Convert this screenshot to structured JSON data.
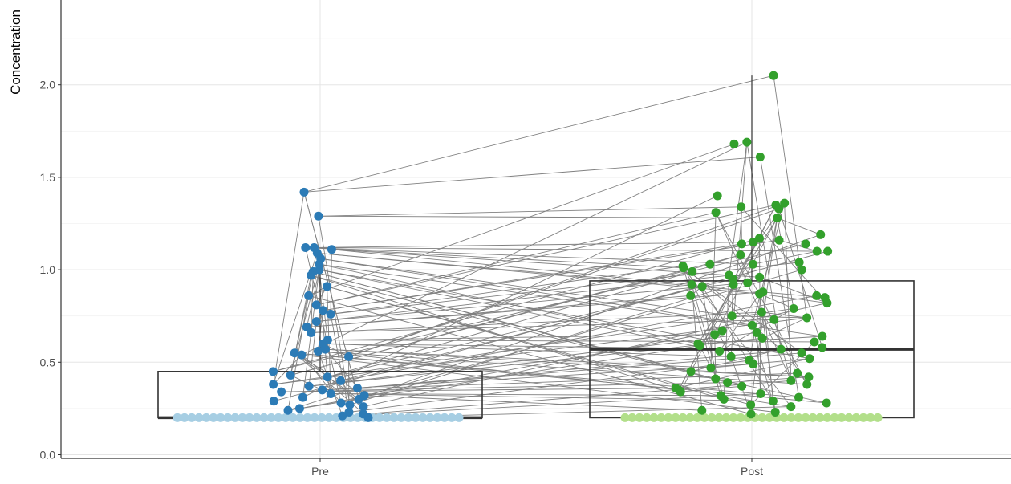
{
  "chart_data": {
    "type": "boxplot",
    "title": "",
    "ylabel": "Concentration",
    "xlabel": "",
    "categories": [
      "Pre",
      "Post"
    ],
    "ylim": [
      0,
      2.5
    ],
    "yticks": [
      0.0,
      0.5,
      1.0,
      1.5,
      2.0
    ],
    "ytick_labels": [
      "0.0",
      "0.5",
      "1.0",
      "1.5",
      "2.0"
    ],
    "grid": true,
    "series": [
      {
        "category": "Pre",
        "color": "#2c7bb6",
        "censored_color": "#a6cee3",
        "box": {
          "q1": 0.2,
          "median": 0.2,
          "q3": 0.45,
          "whisker_low": 0.2,
          "whisker_high": 1.0
        },
        "points": [
          1.42,
          1.29,
          1.12,
          1.12,
          1.11,
          1.09,
          1.06,
          1.03,
          1.0,
          0.99,
          0.97,
          0.91,
          0.86,
          0.81,
          0.78,
          0.76,
          0.72,
          0.69,
          0.66,
          0.62,
          0.6,
          0.57,
          0.56,
          0.55,
          0.54,
          0.53,
          0.45,
          0.43,
          0.42,
          0.4,
          0.38,
          0.37,
          0.36,
          0.35,
          0.34,
          0.33,
          0.32,
          0.31,
          0.3,
          0.29,
          0.28,
          0.27,
          0.26,
          0.25,
          0.24,
          0.23,
          0.22,
          0.21,
          0.2
        ]
      },
      {
        "category": "Post",
        "color": "#33a02c",
        "censored_color": "#b2df8a",
        "box": {
          "q1": 0.2,
          "median": 0.57,
          "q3": 0.94,
          "whisker_low": 0.2,
          "whisker_high": 2.05
        },
        "points": [
          2.05,
          1.69,
          1.68,
          1.61,
          1.4,
          1.36,
          1.35,
          1.34,
          1.33,
          1.31,
          1.28,
          1.19,
          1.17,
          1.16,
          1.15,
          1.14,
          1.14,
          1.1,
          1.1,
          1.08,
          1.04,
          1.03,
          1.03,
          1.02,
          1.01,
          1.0,
          0.99,
          0.97,
          0.96,
          0.95,
          0.93,
          0.92,
          0.92,
          0.91,
          0.88,
          0.87,
          0.86,
          0.86,
          0.85,
          0.82,
          0.79,
          0.77,
          0.75,
          0.74,
          0.73,
          0.7,
          0.67,
          0.66,
          0.65,
          0.64,
          0.63,
          0.61,
          0.6,
          0.59,
          0.58,
          0.57,
          0.56,
          0.55,
          0.53,
          0.52,
          0.51,
          0.49,
          0.47,
          0.45,
          0.44,
          0.42,
          0.41,
          0.4,
          0.39,
          0.38,
          0.37,
          0.36,
          0.35,
          0.34,
          0.33,
          0.32,
          0.31,
          0.3,
          0.29,
          0.28,
          0.27,
          0.26,
          0.24,
          0.23,
          0.22
        ]
      }
    ]
  }
}
